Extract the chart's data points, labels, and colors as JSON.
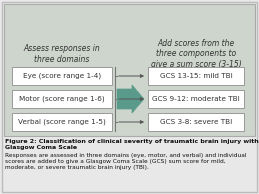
{
  "outer_bg": "#e8e8e8",
  "panel_bg": "#cdd5cc",
  "box_color": "#ffffff",
  "box_edge": "#999999",
  "arrow_color": "#5a9a8a",
  "text_color": "#333333",
  "caption_bg": "#f0f0f0",
  "left_boxes": [
    "Eye (score range 1-4)",
    "Motor (score range 1-6)",
    "Verbal (score range 1-5)"
  ],
  "right_boxes": [
    "GCS 13-15: mild TBI",
    "GCS 9-12: moderate TBI",
    "GCS 3-8: severe TBI"
  ],
  "left_header": "Assess responses in\nthree domains",
  "right_header": "Add scores from the\nthree components to\ngive a sum score (3-15)",
  "caption_bold": "Figure 2: Classification of clinical severity of traumatic brain injury with the Glasgow Coma Scale",
  "caption_normal": "Responses are assessed in three domains (eye, motor, and verbal) and individual scores are added to give a Glasgow Coma Scale (GCS) sum score for mild, moderate, or severe traumatic brain injury (TBI).",
  "figsize": [
    2.59,
    1.94
  ],
  "dpi": 100
}
